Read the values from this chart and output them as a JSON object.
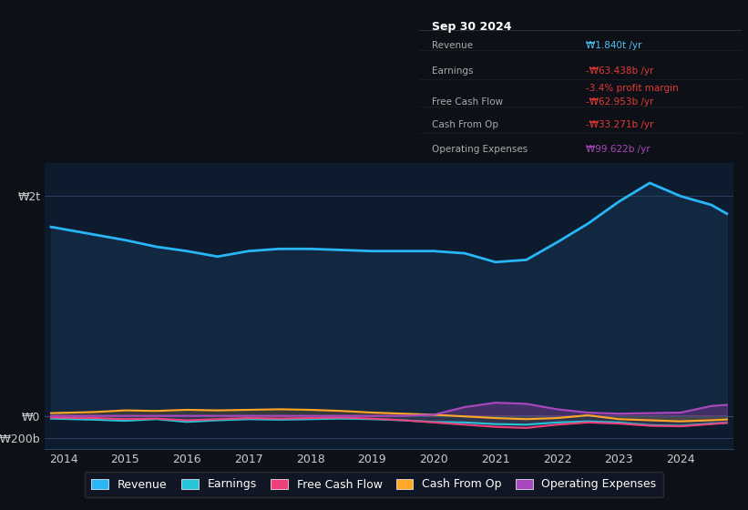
{
  "bg_color": "#0d1117",
  "chart_bg": "#0d1b2e",
  "text_color": "#cccccc",
  "title": "Sep 30 2024",
  "legend": [
    {
      "label": "Revenue",
      "color": "#29b6f6"
    },
    {
      "label": "Earnings",
      "color": "#26c6da"
    },
    {
      "label": "Free Cash Flow",
      "color": "#ec407a"
    },
    {
      "label": "Cash From Op",
      "color": "#ffa726"
    },
    {
      "label": "Operating Expenses",
      "color": "#ab47bc"
    }
  ],
  "ytick_labels": [
    "₩2t",
    "₩0",
    "-₩200b"
  ],
  "ytick_values": [
    2000000000000,
    0,
    -200000000000
  ],
  "xtick_labels": [
    "2014",
    "2015",
    "2016",
    "2017",
    "2018",
    "2019",
    "2020",
    "2021",
    "2022",
    "2023",
    "2024"
  ]
}
